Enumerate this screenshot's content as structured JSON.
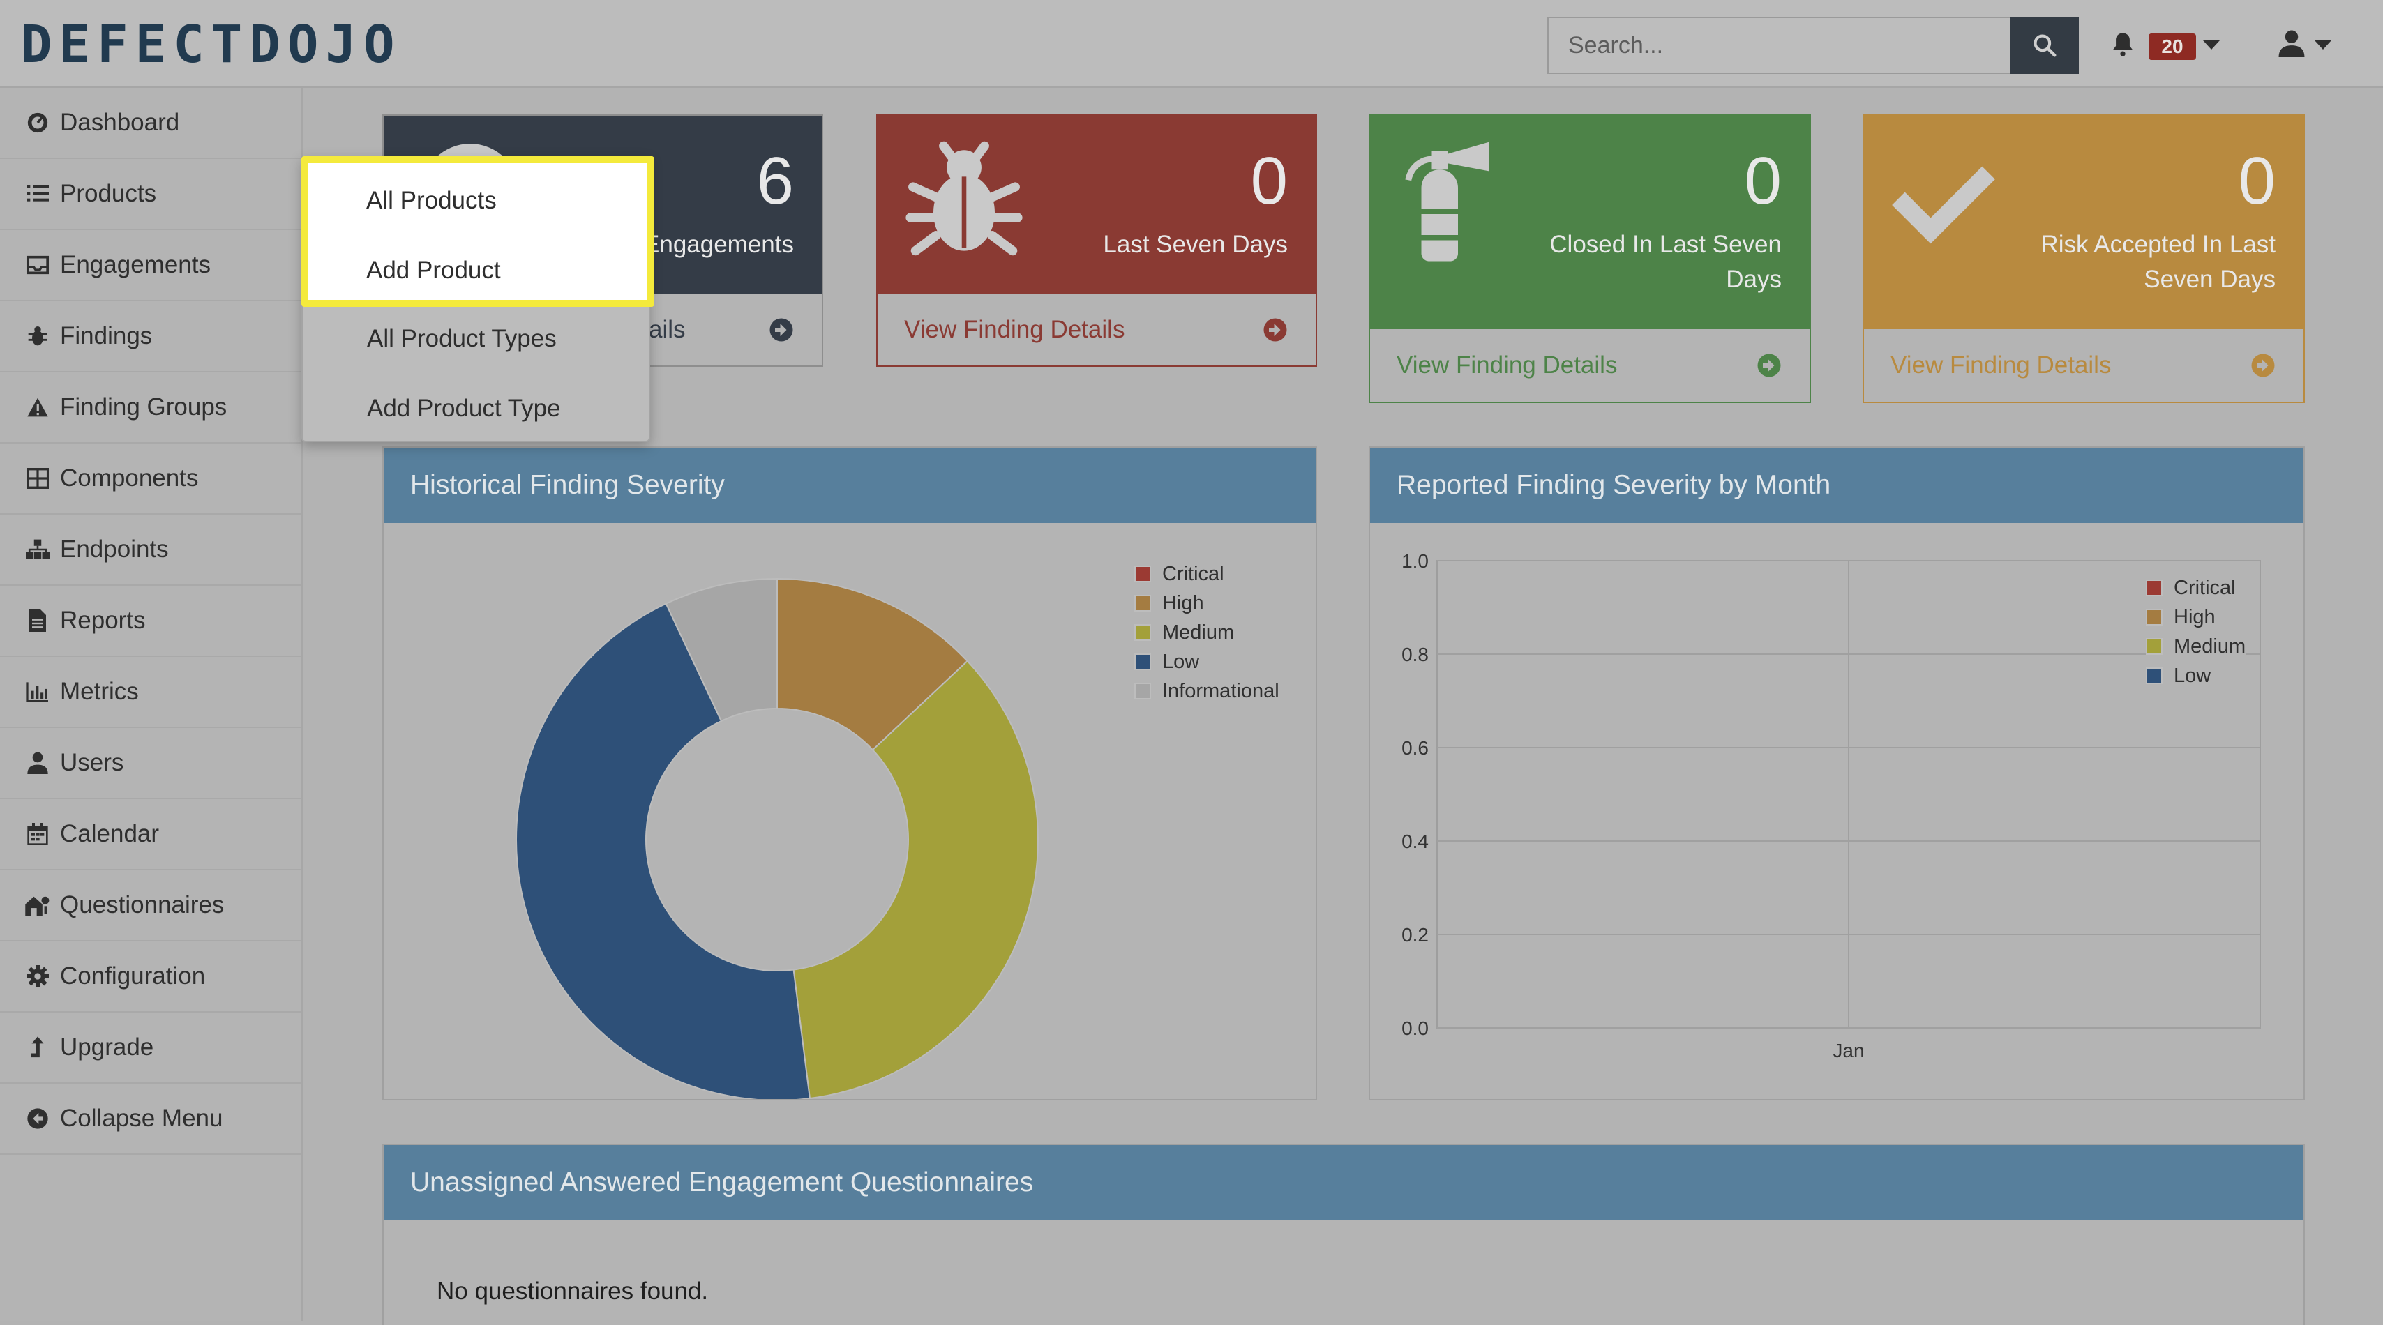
{
  "header": {
    "logo_text": "DEFECTDOJO",
    "search_placeholder": "Search...",
    "notification_count": "20"
  },
  "sidebar": {
    "items": [
      {
        "label": "Dashboard",
        "icon": "dashboard-icon"
      },
      {
        "label": "Products",
        "icon": "list-icon"
      },
      {
        "label": "Engagements",
        "icon": "inbox-icon"
      },
      {
        "label": "Findings",
        "icon": "bug-icon"
      },
      {
        "label": "Finding Groups",
        "icon": "warning-icon"
      },
      {
        "label": "Components",
        "icon": "table-icon"
      },
      {
        "label": "Endpoints",
        "icon": "sitemap-icon"
      },
      {
        "label": "Reports",
        "icon": "file-icon"
      },
      {
        "label": "Metrics",
        "icon": "bar-chart-icon"
      },
      {
        "label": "Users",
        "icon": "user-icon"
      },
      {
        "label": "Calendar",
        "icon": "calendar-icon"
      },
      {
        "label": "Questionnaires",
        "icon": "questionnaire-icon"
      },
      {
        "label": "Configuration",
        "icon": "gear-icon"
      },
      {
        "label": "Upgrade",
        "icon": "upgrade-arrow-icon"
      },
      {
        "label": "Collapse Menu",
        "icon": "arrow-circle-left-icon"
      }
    ]
  },
  "products_menu": {
    "items": [
      "All Products",
      "Add Product",
      "All Product Types",
      "Add Product Type"
    ]
  },
  "tiles": [
    {
      "value": "6",
      "label": "Engagements",
      "link_fragment": "ails",
      "color": "#343c47"
    },
    {
      "value": "0",
      "label": "Last Seven Days",
      "link": "View Finding Details",
      "color": "#8a3a33",
      "link_color": "#8a3a33"
    },
    {
      "value": "0",
      "label_line1": "Closed In Last Seven",
      "label_line2": "Days",
      "link": "View Finding Details",
      "color": "#4d8348",
      "link_color": "#4d8348"
    },
    {
      "value": "0",
      "label_line1": "Risk Accepted In Last",
      "label_line2": "Seven Days",
      "link": "View Finding Details",
      "color": "#b88a3f",
      "link_color": "#b88a3f"
    }
  ],
  "panels": {
    "historical_title": "Historical Finding Severity",
    "monthly_title": "Reported Finding Severity by Month",
    "questionnaires_title": "Unassigned Answered Engagement Questionnaires",
    "questionnaires_empty": "No questionnaires found."
  },
  "colors": {
    "critical": "#9b3a33",
    "high": "#a47c41",
    "medium": "#a3a03a",
    "low": "#2e5078",
    "informational": "#a6a6a6"
  },
  "chart_data": [
    {
      "type": "pie",
      "title": "Historical Finding Severity",
      "categories": [
        "Critical",
        "High",
        "Medium",
        "Low",
        "Informational"
      ],
      "values": [
        0,
        13,
        35,
        45,
        7
      ],
      "legend": "top-right",
      "donut": true
    },
    {
      "type": "line",
      "title": "Reported Finding Severity by Month",
      "x": [
        "Jan"
      ],
      "series": [
        {
          "name": "Critical",
          "values": [
            0
          ]
        },
        {
          "name": "High",
          "values": [
            0
          ]
        },
        {
          "name": "Medium",
          "values": [
            0
          ]
        },
        {
          "name": "Low",
          "values": [
            0
          ]
        }
      ],
      "ylim": [
        0,
        1.0
      ],
      "yticks": [
        "1.0",
        "0.8",
        "0.6",
        "0.4",
        "0.2",
        "0.0"
      ],
      "grid": true,
      "legend": "top-right"
    }
  ]
}
